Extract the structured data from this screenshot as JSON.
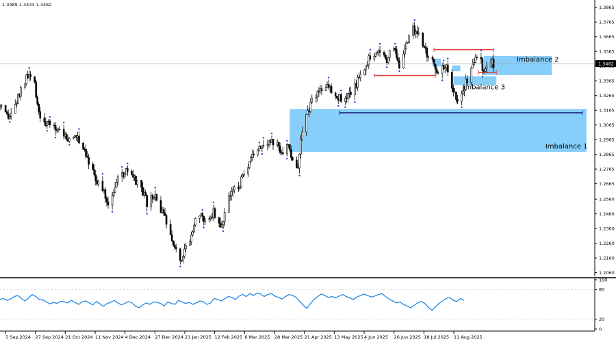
{
  "header": {
    "ohlc_text": "1.3489 1.3433 1.3482"
  },
  "chart_data": [
    {
      "type": "candlestick",
      "title": "",
      "ylim": [
        1.2035,
        1.3915
      ],
      "y_ticks": [
        "1.3865",
        "1.3765",
        "1.3665",
        "1.3565",
        "1.3465",
        "1.3365",
        "1.3265",
        "1.3165",
        "1.3065",
        "1.2965",
        "1.2865",
        "1.2765",
        "1.2665",
        "1.2560",
        "1.2460",
        "1.2360",
        "1.2260",
        "1.2160",
        "1.2060"
      ],
      "current_price": "1.3482",
      "grid": false,
      "x_labels": [
        "5 Sep 2024",
        "27 Sep 2024",
        "21 Oct 2024",
        "11 Nov 2024",
        "4 Dec 2024",
        "27 Dec 2024",
        "21 Jan 2025",
        "12 Feb 2025",
        "6 Mar 2025",
        "28 Mar 2025",
        "21 Apr 2025",
        "13 May 2025",
        "4 Jun 2025",
        "26 Jun 2025",
        "18 Jul 2025",
        "11 Aug 2025"
      ],
      "price_path": [
        {
          "date": "2024-09-05",
          "price": 1.318
        },
        {
          "date": "2024-09-11",
          "price": 1.31
        },
        {
          "date": "2024-09-17",
          "price": 1.322
        },
        {
          "date": "2024-09-22",
          "price": 1.335
        },
        {
          "date": "2024-09-26",
          "price": 1.34
        },
        {
          "date": "2024-09-30",
          "price": 1.333
        },
        {
          "date": "2024-10-04",
          "price": 1.311
        },
        {
          "date": "2024-10-10",
          "price": 1.306
        },
        {
          "date": "2024-10-18",
          "price": 1.304
        },
        {
          "date": "2024-10-24",
          "price": 1.296
        },
        {
          "date": "2024-10-31",
          "price": 1.299
        },
        {
          "date": "2024-11-06",
          "price": 1.288
        },
        {
          "date": "2024-11-12",
          "price": 1.272
        },
        {
          "date": "2024-11-18",
          "price": 1.262
        },
        {
          "date": "2024-11-22",
          "price": 1.253
        },
        {
          "date": "2024-11-28",
          "price": 1.268
        },
        {
          "date": "2024-12-05",
          "price": 1.275
        },
        {
          "date": "2024-12-10",
          "price": 1.27
        },
        {
          "date": "2024-12-16",
          "price": 1.262
        },
        {
          "date": "2024-12-20",
          "price": 1.253
        },
        {
          "date": "2024-12-26",
          "price": 1.258
        },
        {
          "date": "2025-01-02",
          "price": 1.242
        },
        {
          "date": "2025-01-08",
          "price": 1.228
        },
        {
          "date": "2025-01-13",
          "price": 1.215
        },
        {
          "date": "2025-01-20",
          "price": 1.23
        },
        {
          "date": "2025-01-25",
          "price": 1.246
        },
        {
          "date": "2025-01-31",
          "price": 1.241
        },
        {
          "date": "2025-02-06",
          "price": 1.248
        },
        {
          "date": "2025-02-11",
          "price": 1.236
        },
        {
          "date": "2025-02-17",
          "price": 1.258
        },
        {
          "date": "2025-02-24",
          "price": 1.265
        },
        {
          "date": "2025-03-03",
          "price": 1.276
        },
        {
          "date": "2025-03-08",
          "price": 1.29
        },
        {
          "date": "2025-03-16",
          "price": 1.296
        },
        {
          "date": "2025-03-22",
          "price": 1.294
        },
        {
          "date": "2025-03-28",
          "price": 1.289
        },
        {
          "date": "2025-04-01",
          "price": 1.292
        },
        {
          "date": "2025-04-05",
          "price": 1.276
        },
        {
          "date": "2025-04-08",
          "price": 1.28
        },
        {
          "date": "2025-04-12",
          "price": 1.307
        },
        {
          "date": "2025-04-18",
          "price": 1.324
        },
        {
          "date": "2025-04-24",
          "price": 1.331
        },
        {
          "date": "2025-04-30",
          "price": 1.333
        },
        {
          "date": "2025-05-06",
          "price": 1.327
        },
        {
          "date": "2025-05-12",
          "price": 1.322
        },
        {
          "date": "2025-05-18",
          "price": 1.331
        },
        {
          "date": "2025-05-24",
          "price": 1.343
        },
        {
          "date": "2025-05-30",
          "price": 1.354
        },
        {
          "date": "2025-06-05",
          "price": 1.356
        },
        {
          "date": "2025-06-11",
          "price": 1.352
        },
        {
          "date": "2025-06-16",
          "price": 1.359
        },
        {
          "date": "2025-06-20",
          "price": 1.347
        },
        {
          "date": "2025-06-25",
          "price": 1.361
        },
        {
          "date": "2025-06-30",
          "price": 1.372
        },
        {
          "date": "2025-07-03",
          "price": 1.369
        },
        {
          "date": "2025-07-08",
          "price": 1.359
        },
        {
          "date": "2025-07-13",
          "price": 1.351
        },
        {
          "date": "2025-07-17",
          "price": 1.342
        },
        {
          "date": "2025-07-21",
          "price": 1.349
        },
        {
          "date": "2025-07-25",
          "price": 1.344
        },
        {
          "date": "2025-07-31",
          "price": 1.324
        },
        {
          "date": "2025-08-04",
          "price": 1.327
        },
        {
          "date": "2025-08-07",
          "price": 1.336
        },
        {
          "date": "2025-08-11",
          "price": 1.343
        },
        {
          "date": "2025-08-14",
          "price": 1.353
        },
        {
          "date": "2025-08-18",
          "price": 1.349
        },
        {
          "date": "2025-08-20",
          "price": 1.343
        },
        {
          "date": "2025-08-23",
          "price": 1.348
        },
        {
          "date": "2025-08-27",
          "price": 1.3482
        }
      ],
      "horizontal_levels": [
        {
          "price": 1.3577,
          "color": "#e53935",
          "from": "2025-07-15",
          "to": "2025-08-27"
        },
        {
          "price": 1.3401,
          "color": "#e53935",
          "from": "2025-06-02",
          "to": "2025-07-16"
        },
        {
          "price": 1.3423,
          "color": "#e53935",
          "from": "2025-08-16",
          "to": "2025-08-29"
        },
        {
          "price": 1.3148,
          "color": "#1a237e",
          "from": "2025-05-08",
          "to": "2025-10-30"
        }
      ],
      "zones": [
        {
          "label": "Imbalance 1",
          "price_low": 1.2882,
          "price_high": 1.3174,
          "from": "2025-04-02",
          "to": "2025-11-02",
          "color": "#87cefa"
        },
        {
          "label": "Imbalance 2",
          "price_low": 1.3404,
          "price_high": 1.3534,
          "from": "2025-08-20",
          "to": "2025-10-08",
          "color": "#87cefa"
        },
        {
          "label": "Imbalance 3",
          "price_low": 1.3338,
          "price_high": 1.3396,
          "from": "2025-07-29",
          "to": "2025-08-29",
          "color": "#87cefa"
        },
        {
          "label": "",
          "price_low": 1.3464,
          "price_high": 1.3516,
          "from": "2025-07-14",
          "to": "2025-07-20",
          "color": "#87cefa"
        },
        {
          "label": "",
          "price_low": 1.343,
          "price_high": 1.347,
          "from": "2025-07-28",
          "to": "2025-08-03",
          "color": "#87cefa"
        }
      ]
    },
    {
      "type": "line",
      "title": "",
      "ylim": [
        0,
        100
      ],
      "y_ticks": [
        "100",
        "80",
        "20",
        "0"
      ],
      "series": [
        {
          "values": [
            60,
            62,
            58,
            61,
            66,
            68,
            62,
            57,
            63,
            70,
            66,
            60,
            59,
            55,
            51,
            54,
            52,
            56,
            55,
            53,
            58,
            54,
            50,
            55,
            57,
            53,
            49,
            56,
            51,
            46,
            52,
            54,
            58,
            53,
            49,
            52,
            56,
            53,
            46,
            43,
            49,
            53,
            50,
            55,
            54,
            52,
            47,
            55,
            52,
            50,
            58,
            55,
            52,
            54,
            50,
            53,
            57,
            55,
            50,
            53,
            62,
            60,
            57,
            62,
            66,
            64,
            60,
            67,
            70,
            66,
            72,
            68,
            73,
            71,
            66,
            70,
            72,
            67,
            64,
            61,
            66,
            70,
            68,
            64,
            56,
            48,
            42,
            52,
            60,
            66,
            71,
            68,
            64,
            66,
            63,
            67,
            70,
            66,
            63,
            60,
            65,
            68,
            71,
            68,
            65,
            67,
            70,
            72,
            66,
            61,
            57,
            53,
            55,
            50,
            47,
            43,
            48,
            53,
            56,
            52,
            44,
            38,
            45,
            52,
            57,
            62,
            64,
            58,
            56,
            62,
            58
          ]
        }
      ]
    }
  ]
}
